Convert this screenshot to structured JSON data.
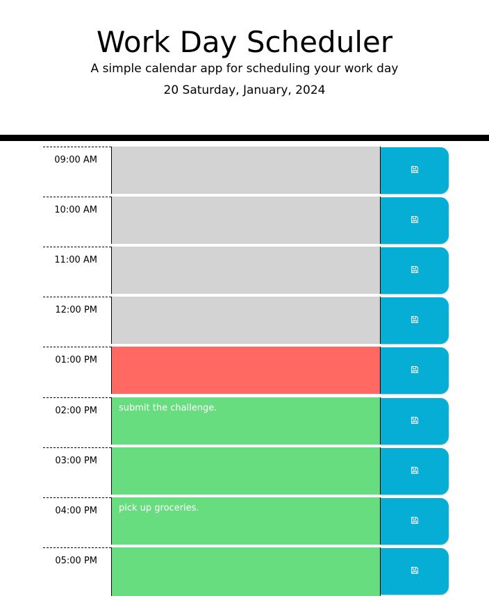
{
  "header": {
    "title": "Work Day Scheduler",
    "subtitle": "A simple calendar app for scheduling your work day",
    "date": "20 Saturday, January, 2024"
  },
  "time_blocks": [
    {
      "hour": "09:00 AM",
      "text": "",
      "state": "past"
    },
    {
      "hour": "10:00 AM",
      "text": "",
      "state": "past"
    },
    {
      "hour": "11:00 AM",
      "text": "",
      "state": "past"
    },
    {
      "hour": "12:00 PM",
      "text": "",
      "state": "past"
    },
    {
      "hour": "01:00 PM",
      "text": "",
      "state": "present"
    },
    {
      "hour": "02:00 PM",
      "text": "submit the challenge.",
      "state": "future"
    },
    {
      "hour": "03:00 PM",
      "text": "",
      "state": "future"
    },
    {
      "hour": "04:00 PM",
      "text": "pick up groceries.",
      "state": "future"
    },
    {
      "hour": "05:00 PM",
      "text": "",
      "state": "future"
    }
  ],
  "save_icon": "save-icon",
  "colors": {
    "past": "#d3d3d3",
    "present": "#ff6961",
    "future": "#68dd7f",
    "save_button": "#06aed5"
  }
}
